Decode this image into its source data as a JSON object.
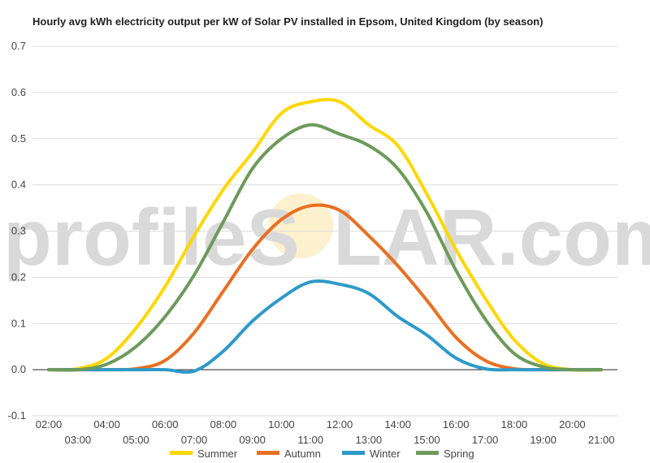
{
  "chart_data": {
    "type": "line",
    "title": "Hourly avg kWh electricity output per kW of Solar PV installed in Epsom, United Kingdom (by season)",
    "xlabel": "",
    "ylabel": "",
    "x": [
      "02:00",
      "03:00",
      "04:00",
      "05:00",
      "06:00",
      "07:00",
      "08:00",
      "09:00",
      "10:00",
      "11:00",
      "12:00",
      "13:00",
      "14:00",
      "15:00",
      "16:00",
      "17:00",
      "18:00",
      "19:00",
      "20:00",
      "21:00"
    ],
    "ylim": [
      -0.1,
      0.7
    ],
    "yticks": [
      "0.7",
      "0.6",
      "0.5",
      "0.4",
      "0.3",
      "0.2",
      "0.1",
      "0.0",
      "-0.1"
    ],
    "grid": true,
    "legend_position": "bottom",
    "series": [
      {
        "name": "Summer",
        "color": "#ffd700",
        "values": [
          0,
          0.002,
          0.025,
          0.09,
          0.18,
          0.29,
          0.39,
          0.47,
          0.555,
          0.58,
          0.58,
          0.53,
          0.485,
          0.38,
          0.26,
          0.155,
          0.065,
          0.013,
          0.0,
          0.0
        ]
      },
      {
        "name": "Autumn",
        "color": "#e87022",
        "values": [
          0,
          0,
          0,
          0.002,
          0.02,
          0.08,
          0.17,
          0.26,
          0.325,
          0.355,
          0.345,
          0.29,
          0.225,
          0.15,
          0.07,
          0.02,
          0.002,
          0,
          0,
          0
        ]
      },
      {
        "name": "Winter",
        "color": "#2e9ac9",
        "values": [
          0,
          0,
          0,
          0,
          0,
          -0.003,
          0.04,
          0.105,
          0.155,
          0.19,
          0.185,
          0.165,
          0.115,
          0.075,
          0.025,
          0.002,
          0,
          0,
          0,
          0
        ]
      },
      {
        "name": "Spring",
        "color": "#6d9a5b",
        "values": [
          0,
          0,
          0.012,
          0.05,
          0.115,
          0.205,
          0.32,
          0.435,
          0.5,
          0.53,
          0.51,
          0.485,
          0.435,
          0.34,
          0.215,
          0.11,
          0.035,
          0.006,
          0,
          0
        ]
      }
    ]
  },
  "watermark": {
    "left": "profileS",
    "right": "LAR.com"
  }
}
